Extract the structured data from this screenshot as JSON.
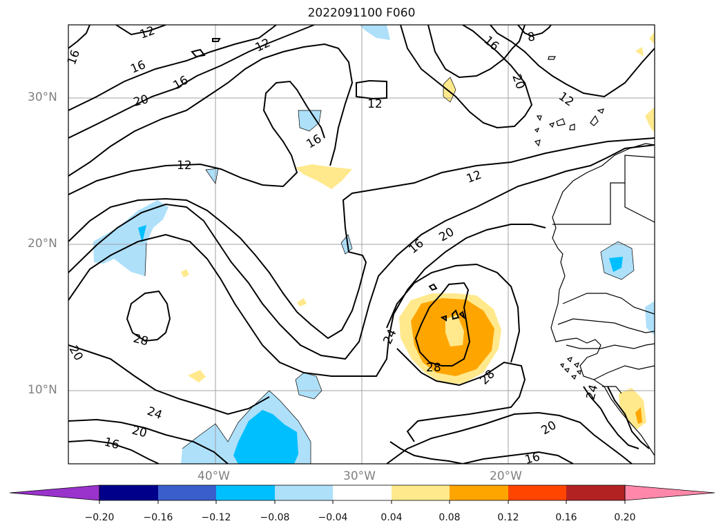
{
  "title": "2022091100 F060",
  "lat_labels": [
    "30°N",
    "20°N",
    "10°N"
  ],
  "lon_labels": [
    "40°W",
    "30°W",
    "20°W"
  ],
  "contour_labels": [
    "12",
    "12",
    "12",
    "12",
    "12",
    "16",
    "16",
    "16",
    "16",
    "16",
    "16",
    "16",
    "8",
    "20",
    "20",
    "20",
    "20",
    "20",
    "20",
    "24",
    "24",
    "24",
    "28",
    "28",
    "28",
    "12"
  ],
  "colorbar": {
    "tick_labels": [
      "−0.20",
      "−0.16",
      "−0.12",
      "−0.08",
      "−0.04",
      "0.04",
      "0.08",
      "0.12",
      "0.16",
      "0.20"
    ],
    "colors": [
      "#9933cc",
      "#00008b",
      "#3a5fcd",
      "#00bfff",
      "#aee0fa",
      "#ffffff",
      "#ffe98c",
      "#ffa500",
      "#ff4500",
      "#b22222",
      "#ff88aa"
    ]
  },
  "colors": {
    "contour": "#000000",
    "grid": "#a0a0a0",
    "coast": "#000000"
  }
}
